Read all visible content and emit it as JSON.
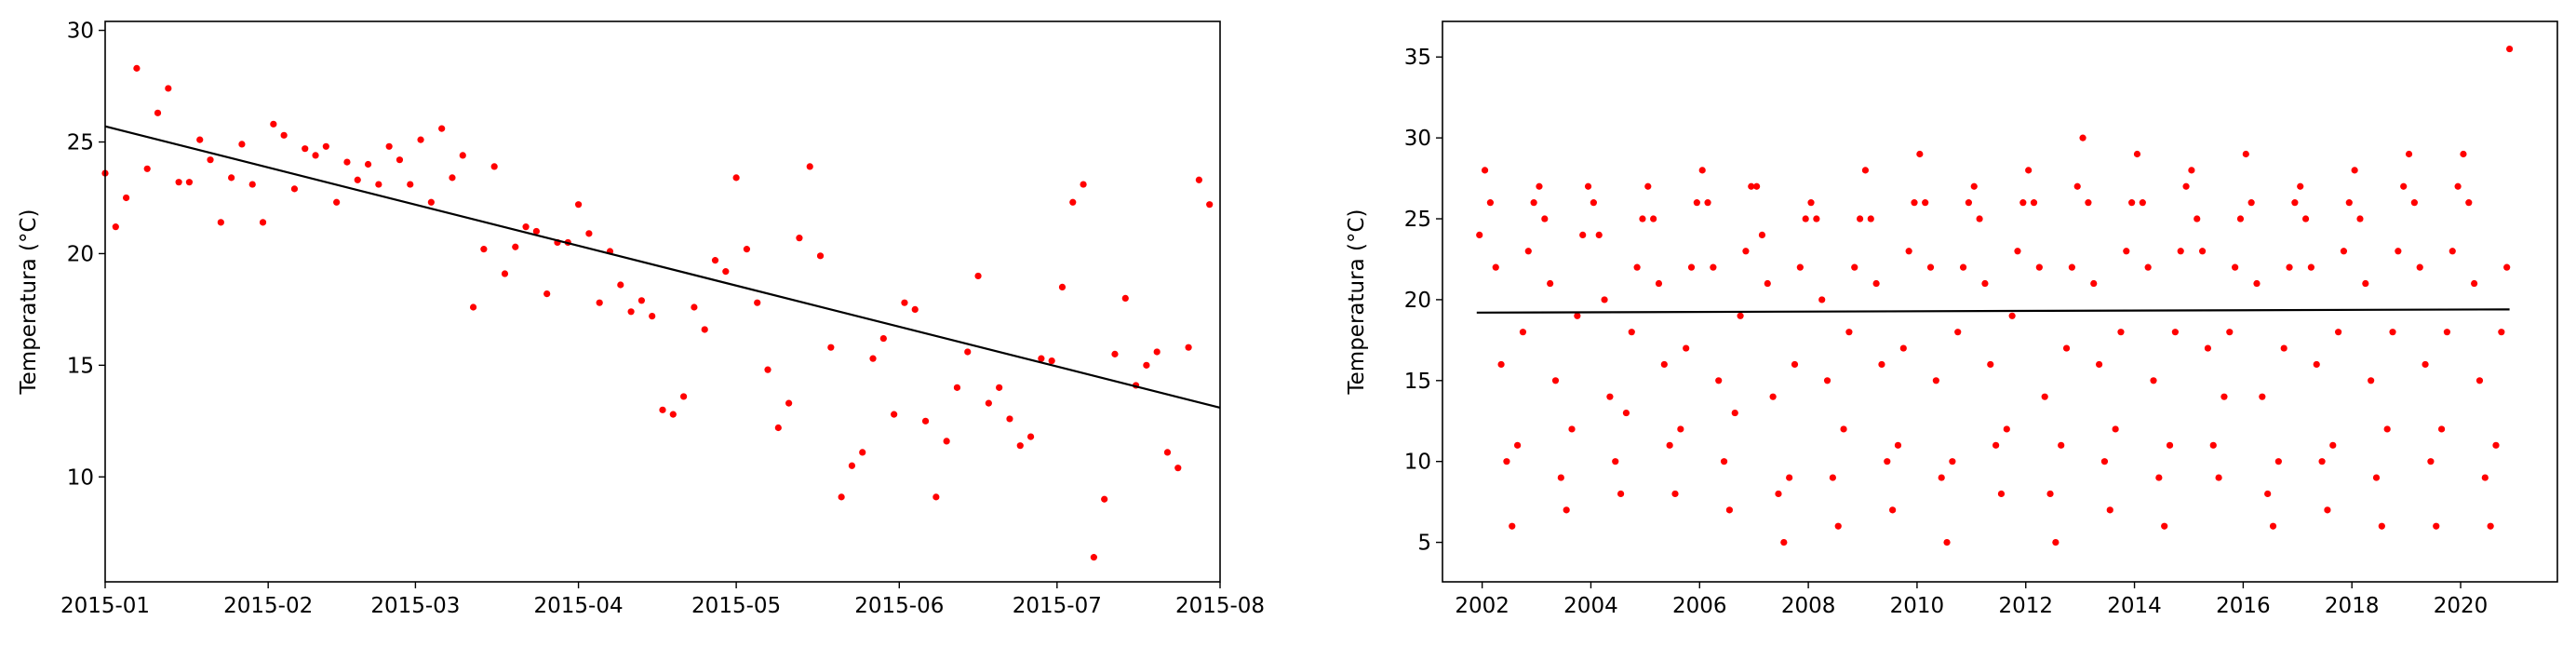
{
  "chart_data": [
    {
      "type": "scatter",
      "ylabel": "Temperatura (°C)",
      "xlim": [
        0,
        212
      ],
      "ylim": [
        5.3,
        30.4
      ],
      "xticks": [
        {
          "value": 0,
          "label": "2015-01"
        },
        {
          "value": 31,
          "label": "2015-02"
        },
        {
          "value": 59,
          "label": "2015-03"
        },
        {
          "value": 90,
          "label": "2015-04"
        },
        {
          "value": 120,
          "label": "2015-05"
        },
        {
          "value": 151,
          "label": "2015-06"
        },
        {
          "value": 181,
          "label": "2015-07"
        },
        {
          "value": 212,
          "label": "2015-08"
        }
      ],
      "yticks": [
        10,
        15,
        20,
        25,
        30
      ],
      "series": [
        {
          "type": "scatter",
          "color": "#ff0000",
          "x": [
            0,
            2,
            4,
            6,
            8,
            10,
            12,
            14,
            16,
            18,
            20,
            22,
            24,
            26,
            28,
            30,
            32,
            34,
            36,
            38,
            40,
            42,
            44,
            46,
            48,
            50,
            52,
            54,
            56,
            58,
            60,
            62,
            64,
            66,
            68,
            70,
            72,
            74,
            76,
            78,
            80,
            82,
            84,
            86,
            88,
            90,
            92,
            94,
            96,
            98,
            100,
            102,
            104,
            106,
            108,
            110,
            112,
            114,
            116,
            118,
            120,
            122,
            124,
            126,
            128,
            130,
            132,
            134,
            136,
            138,
            140,
            142,
            144,
            146,
            148,
            150,
            152,
            154,
            156,
            158,
            160,
            162,
            164,
            166,
            168,
            170,
            172,
            174,
            176,
            178,
            180,
            182,
            184,
            186,
            188,
            190,
            192,
            194,
            196,
            198,
            200,
            202,
            204,
            206,
            208,
            210
          ],
          "values": [
            23.6,
            21.2,
            22.5,
            28.3,
            23.8,
            26.3,
            27.4,
            23.2,
            23.2,
            25.1,
            24.2,
            21.4,
            23.4,
            24.9,
            23.1,
            21.4,
            25.8,
            25.3,
            22.9,
            24.7,
            24.4,
            24.8,
            22.3,
            24.1,
            23.3,
            24,
            23.1,
            24.8,
            24.2,
            23.1,
            25.1,
            22.3,
            25.6,
            23.4,
            24.4,
            17.6,
            20.2,
            23.9,
            19.1,
            20.3,
            21.2,
            21,
            18.2,
            20.5,
            20.5,
            22.2,
            20.9,
            17.8,
            20.1,
            18.6,
            17.4,
            17.9,
            17.2,
            13,
            12.8,
            13.6,
            17.6,
            16.6,
            19.7,
            19.2,
            23.4,
            20.2,
            17.8,
            14.8,
            12.2,
            13.3,
            20.7,
            23.9,
            19.9,
            15.8,
            9.1,
            10.5,
            11.1,
            15.3,
            16.2,
            12.8,
            17.8,
            17.5,
            12.5,
            9.1,
            11.6,
            14,
            15.6,
            19,
            13.3,
            14,
            12.6,
            11.4,
            11.8,
            15.3,
            15.2,
            18.5,
            22.3,
            23.1,
            6.4,
            9,
            15.5,
            18,
            14.1,
            15,
            15.6,
            11.1,
            10.4,
            15.8,
            23.3,
            22.2
          ]
        },
        {
          "type": "line",
          "color": "#000000",
          "x": [
            0,
            212
          ],
          "values": [
            25.7,
            13.1
          ]
        }
      ]
    },
    {
      "type": "scatter",
      "ylabel": "Temperatura (°C)",
      "xlim": [
        2001.27,
        2021.78
      ],
      "ylim": [
        2.56,
        37.2
      ],
      "xticks": [
        2002,
        2004,
        2006,
        2008,
        2010,
        2012,
        2014,
        2016,
        2018,
        2020
      ],
      "yticks": [
        5,
        10,
        15,
        20,
        25,
        30,
        35
      ],
      "series": [
        {
          "type": "scatter",
          "color": "#ff0000",
          "x": [
            2001.95,
            2002.05,
            2002.15,
            2002.25,
            2002.35,
            2002.45,
            2002.55,
            2002.65,
            2002.75,
            2002.85,
            2002.95,
            2003.05,
            2003.15,
            2003.25,
            2003.35,
            2003.45,
            2003.55,
            2003.65,
            2003.75,
            2003.85,
            2003.95,
            2004.05,
            2004.15,
            2004.25,
            2004.35,
            2004.45,
            2004.55,
            2004.65,
            2004.75,
            2004.85,
            2004.95,
            2005.05,
            2005.15,
            2005.25,
            2005.35,
            2005.45,
            2005.55,
            2005.65,
            2005.75,
            2005.85,
            2005.95,
            2006.05,
            2006.15,
            2006.25,
            2006.35,
            2006.45,
            2006.55,
            2006.65,
            2006.75,
            2006.85,
            2006.95,
            2007.05,
            2007.15,
            2007.25,
            2007.35,
            2007.45,
            2007.55,
            2007.65,
            2007.75,
            2007.85,
            2007.95,
            2008.05,
            2008.15,
            2008.25,
            2008.35,
            2008.45,
            2008.55,
            2008.65,
            2008.75,
            2008.85,
            2008.95,
            2009.05,
            2009.15,
            2009.25,
            2009.35,
            2009.45,
            2009.55,
            2009.65,
            2009.75,
            2009.85,
            2009.95,
            2010.05,
            2010.15,
            2010.25,
            2010.35,
            2010.45,
            2010.55,
            2010.65,
            2010.75,
            2010.85,
            2010.95,
            2011.05,
            2011.15,
            2011.25,
            2011.35,
            2011.45,
            2011.55,
            2011.65,
            2011.75,
            2011.85,
            2011.95,
            2012.05,
            2012.15,
            2012.25,
            2012.35,
            2012.45,
            2012.55,
            2012.65,
            2012.75,
            2012.85,
            2012.95,
            2013.05,
            2013.15,
            2013.25,
            2013.35,
            2013.45,
            2013.55,
            2013.65,
            2013.75,
            2013.85,
            2013.95,
            2014.05,
            2014.15,
            2014.25,
            2014.35,
            2014.45,
            2014.55,
            2014.65,
            2014.75,
            2014.85,
            2014.95,
            2015.05,
            2015.15,
            2015.25,
            2015.35,
            2015.45,
            2015.55,
            2015.65,
            2015.75,
            2015.85,
            2015.95,
            2016.05,
            2016.15,
            2016.25,
            2016.35,
            2016.45,
            2016.55,
            2016.65,
            2016.75,
            2016.85,
            2016.95,
            2017.05,
            2017.15,
            2017.25,
            2017.35,
            2017.45,
            2017.55,
            2017.65,
            2017.75,
            2017.85,
            2017.95,
            2018.05,
            2018.15,
            2018.25,
            2018.35,
            2018.45,
            2018.55,
            2018.65,
            2018.75,
            2018.85,
            2018.95,
            2019.05,
            2019.15,
            2019.25,
            2019.35,
            2019.45,
            2019.55,
            2019.65,
            2019.75,
            2019.85,
            2019.95,
            2020.05,
            2020.15,
            2020.25,
            2020.35,
            2020.45,
            2020.55,
            2020.65,
            2020.75,
            2020.85,
            2020.9
          ],
          "values": [
            24,
            28,
            26,
            22,
            16,
            10,
            6,
            11,
            18,
            23,
            26,
            27,
            25,
            21,
            15,
            9,
            7,
            12,
            19,
            24,
            27,
            26,
            24,
            20,
            14,
            10,
            8,
            13,
            18,
            22,
            25,
            27,
            25,
            21,
            16,
            11,
            8,
            12,
            17,
            22,
            26,
            28,
            26,
            22,
            15,
            10,
            7,
            13,
            19,
            23,
            27,
            27,
            24,
            21,
            14,
            8,
            5,
            9,
            16,
            22,
            25,
            26,
            25,
            20,
            15,
            9,
            6,
            12,
            18,
            22,
            25,
            28,
            25,
            21,
            16,
            10,
            7,
            11,
            17,
            23,
            26,
            29,
            26,
            22,
            15,
            9,
            5,
            10,
            18,
            22,
            26,
            27,
            25,
            21,
            16,
            11,
            8,
            12,
            19,
            23,
            26,
            28,
            26,
            22,
            14,
            8,
            5,
            11,
            17,
            22,
            27,
            30,
            26,
            21,
            16,
            10,
            7,
            12,
            18,
            23,
            26,
            29,
            26,
            22,
            15,
            9,
            6,
            11,
            18,
            23,
            27,
            28,
            25,
            23,
            17,
            11,
            9,
            14,
            18,
            22,
            25,
            29,
            26,
            21,
            14,
            8,
            6,
            10,
            17,
            22,
            26,
            27,
            25,
            22,
            16,
            10,
            7,
            11,
            18,
            23,
            26,
            28,
            25,
            21,
            15,
            9,
            6,
            12,
            18,
            23,
            27,
            29,
            26,
            22,
            16,
            10,
            6,
            12,
            18,
            23,
            27,
            29,
            26,
            21,
            15,
            9,
            6,
            11,
            18,
            22,
            35.5
          ]
        },
        {
          "type": "line",
          "color": "#000000",
          "x": [
            2001.9,
            2020.9
          ],
          "values": [
            19.2,
            19.4
          ]
        }
      ]
    }
  ]
}
